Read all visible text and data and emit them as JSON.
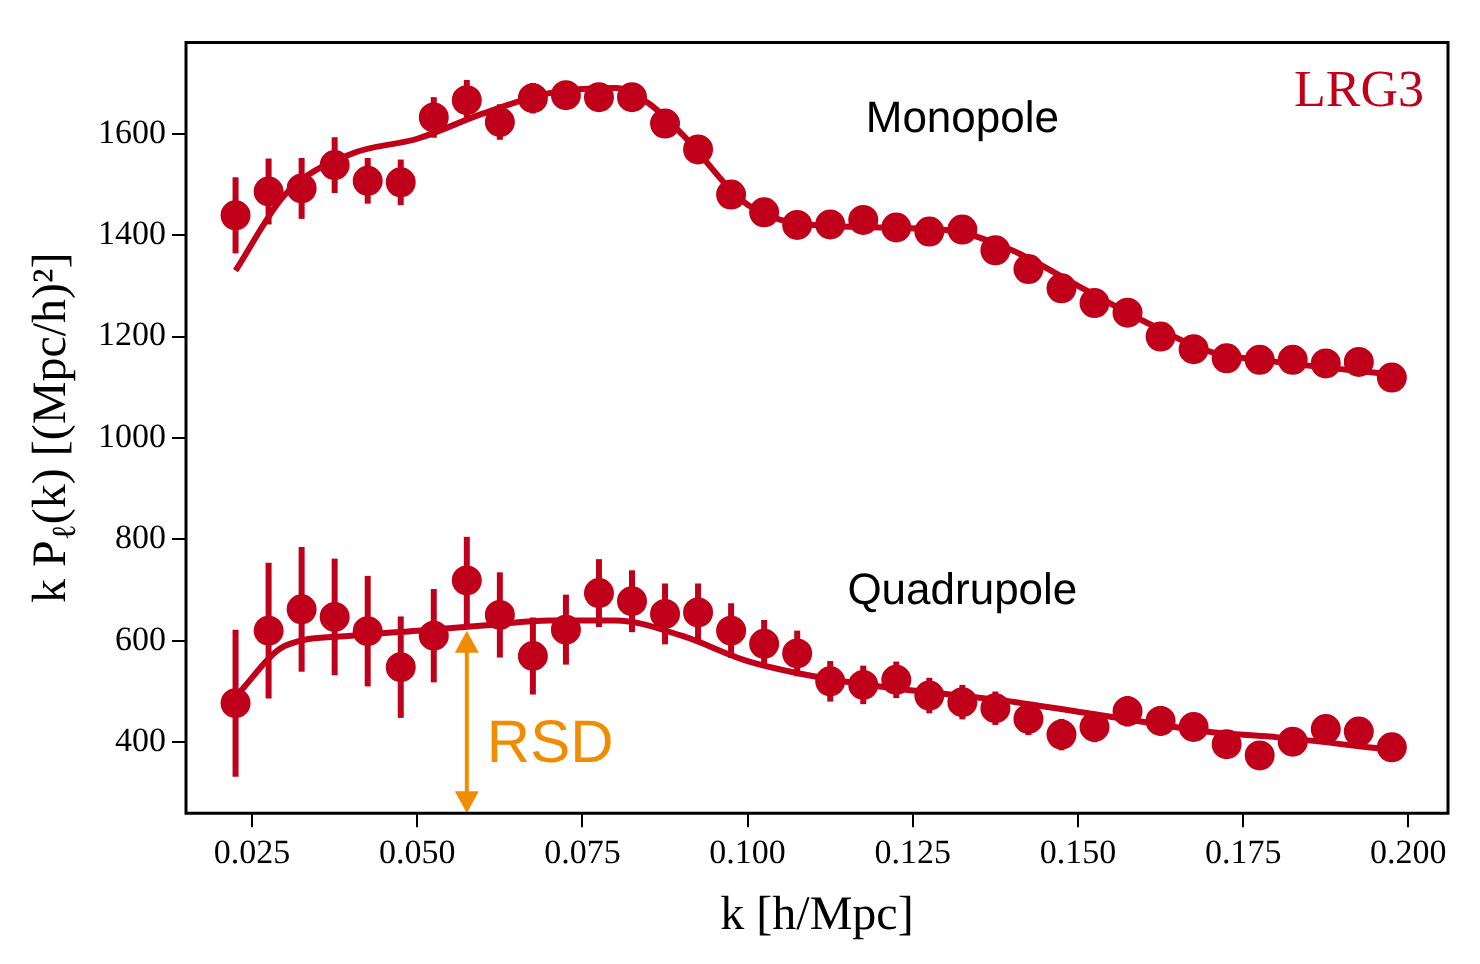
{
  "chart_data": {
    "type": "scatter",
    "xlabel": "k [h/Mpc]",
    "ylabel": "k P$_{ℓ}$(k) [(Mpc/h)²]",
    "xlim": [
      0.015,
      0.206
    ],
    "ylim": [
      260,
      1780
    ],
    "xticks": [
      0.025,
      {
        "value": 0.05,
        "label": "0.050"
      },
      0.075,
      {
        "value": 0.1,
        "label": "0.100"
      },
      0.125,
      {
        "value": 0.15,
        "label": "0.150"
      },
      0.175,
      {
        "value": 0.2,
        "label": "0.200"
      }
    ],
    "yticks": [
      400,
      600,
      800,
      1000,
      1200,
      1400,
      1600
    ],
    "grid": false,
    "legend": false,
    "annotations": [
      "LRG3",
      {
        "text": "RSD",
        "x": 0.0575,
        "y": 620
      }
    ],
    "x": [
      0.0225,
      0.0275,
      0.0325,
      0.0375,
      0.0425,
      0.0475,
      0.0525,
      0.0575,
      0.0625,
      0.0675,
      0.0725,
      0.0775,
      0.0825,
      0.0875,
      0.0925,
      0.0975,
      0.1025,
      0.1075,
      0.1125,
      0.1175,
      0.1225,
      0.1275,
      0.1325,
      0.1375,
      0.1425,
      0.1475,
      0.1525,
      0.1575,
      0.1625,
      0.1675,
      0.1725,
      0.1775,
      0.1825,
      0.1875,
      0.1925,
      0.1975
    ],
    "series": [
      {
        "name": "Monopole",
        "marker": "circle",
        "color": "#c0001a",
        "values": [
          1439,
          1486,
          1492,
          1538,
          1507,
          1504,
          1632,
          1666,
          1623,
          1670,
          1676,
          1672,
          1672,
          1620,
          1569,
          1480,
          1445,
          1420,
          1421,
          1430,
          1415,
          1407,
          1411,
          1370,
          1333,
          1295,
          1266,
          1247,
          1200,
          1175,
          1157,
          1154,
          1154,
          1147,
          1150,
          1119
        ],
        "errors": [
          75,
          65,
          60,
          55,
          45,
          45,
          40,
          40,
          35,
          30,
          28,
          25,
          25,
          22,
          20,
          18,
          16,
          15,
          14,
          13,
          12,
          12,
          11,
          11,
          10,
          10,
          10,
          10,
          10,
          10,
          10,
          10,
          10,
          10,
          10,
          10
        ]
      },
      {
        "type": "line",
        "marker": "none",
        "color": "#c0001a",
        "x": [
          0.0225,
          0.03,
          0.04,
          0.05,
          0.06,
          0.07,
          0.08,
          0.085,
          0.09,
          0.1,
          0.11,
          0.13,
          0.14,
          0.15,
          0.16,
          0.17,
          0.18,
          0.1975
        ],
        "values": [
          1330,
          1480,
          1560,
          1590,
          1640,
          1680,
          1690,
          1660,
          1600,
          1460,
          1420,
          1410,
          1370,
          1300,
          1230,
          1170,
          1150,
          1125
        ]
      },
      {
        "name": "Quadrupole",
        "marker": "circle",
        "color": "#c0001a",
        "values": [
          477,
          620,
          662,
          647,
          619,
          548,
          610,
          719,
          651,
          570,
          622,
          694,
          678,
          653,
          656,
          620,
          594,
          575,
          520,
          513,
          523,
          492,
          479,
          467,
          446,
          415,
          430,
          461,
          442,
          430,
          396,
          374,
          401,
          426,
          421,
          390
        ],
        "errors": [
          145,
          134,
          123,
          115,
          109,
          100,
          92,
          86,
          84,
          76,
          69,
          67,
          61,
          60,
          57,
          54,
          47,
          45,
          40,
          38,
          36,
          35,
          34,
          33,
          32,
          31,
          30,
          30,
          29,
          28,
          28,
          27,
          27,
          26,
          26,
          25
        ]
      },
      {
        "type": "line",
        "marker": "none",
        "color": "#c0001a",
        "x": [
          0.0225,
          0.03,
          0.04,
          0.05,
          0.06,
          0.07,
          0.08,
          0.09,
          0.1,
          0.11,
          0.12,
          0.13,
          0.14,
          0.15,
          0.16,
          0.17,
          0.18,
          0.1975
        ],
        "values": [
          490,
          590,
          610,
          620,
          630,
          640,
          640,
          610,
          560,
          530,
          510,
          495,
          480,
          460,
          440,
          420,
          410,
          385
        ]
      }
    ]
  }
}
